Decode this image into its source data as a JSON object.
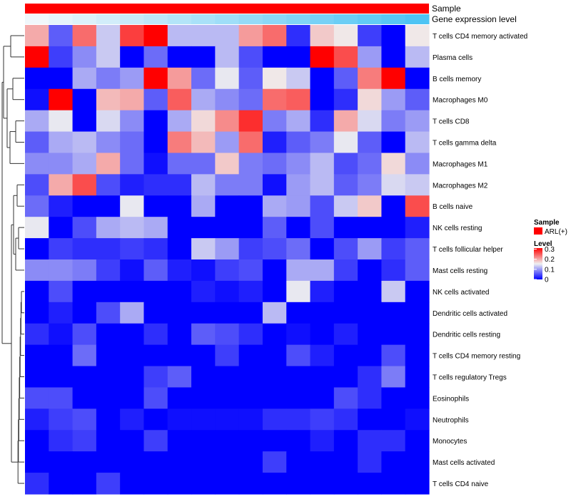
{
  "chart_data": {
    "type": "heatmap",
    "annotation_rows": [
      {
        "name": "Sample",
        "legend_title": "Sample",
        "legend_label": "ARL(+)",
        "color": "#ff0000"
      },
      {
        "name": "Gene expression level",
        "color_low": "#f0f7fb",
        "color_high": "#4ec4f4"
      }
    ],
    "rows": [
      "T cells CD4 memory activated",
      "Plasma cells",
      "B cells memory",
      "Macrophages M0",
      "T cells CD8",
      "T cells gamma delta",
      "Macrophages M1",
      "Macrophages M2",
      "B cells naive",
      "NK cells resting",
      "T cells follicular helper",
      "Mast cells resting",
      "NK cells activated",
      "Dendritic cells activated",
      "Dendritic cells resting",
      "T cells CD4 memory resting",
      "T cells regulatory  Tregs",
      "Eosinophils",
      "Neutrophils",
      "Monocytes",
      "Mast cells activated",
      "T cells CD4 naive"
    ],
    "values": [
      [
        0.2,
        0.06,
        0.24,
        0.13,
        0.27,
        0.31,
        0.12,
        0.12,
        0.12,
        0.21,
        0.24,
        0.03,
        0.18,
        0.16,
        0.04,
        0.0,
        0.16
      ],
      [
        0.31,
        0.04,
        0.09,
        0.13,
        0.0,
        0.07,
        0.0,
        0.0,
        0.12,
        0.05,
        0.0,
        0.0,
        0.31,
        0.26,
        0.1,
        0.0,
        0.12
      ],
      [
        0.0,
        0.0,
        0.11,
        0.08,
        0.1,
        0.31,
        0.21,
        0.07,
        0.15,
        0.06,
        0.16,
        0.13,
        0.0,
        0.06,
        0.23,
        0.31,
        0.0
      ],
      [
        0.01,
        0.31,
        0.0,
        0.19,
        0.2,
        0.06,
        0.25,
        0.11,
        0.09,
        0.07,
        0.24,
        0.25,
        0.0,
        0.03,
        0.17,
        0.1,
        0.06
      ],
      [
        0.11,
        0.15,
        0.0,
        0.14,
        0.09,
        0.0,
        0.11,
        0.17,
        0.22,
        0.28,
        0.08,
        0.11,
        0.03,
        0.2,
        0.14,
        0.08,
        0.1
      ],
      [
        0.06,
        0.11,
        0.12,
        0.09,
        0.07,
        0.0,
        0.23,
        0.19,
        0.1,
        0.24,
        0.02,
        0.06,
        0.08,
        0.15,
        0.06,
        0.0,
        0.12
      ],
      [
        0.09,
        0.09,
        0.11,
        0.2,
        0.07,
        0.01,
        0.07,
        0.07,
        0.18,
        0.08,
        0.07,
        0.09,
        0.12,
        0.05,
        0.07,
        0.17,
        0.09
      ],
      [
        0.05,
        0.2,
        0.26,
        0.05,
        0.02,
        0.03,
        0.03,
        0.12,
        0.08,
        0.08,
        0.01,
        0.1,
        0.12,
        0.06,
        0.08,
        0.14,
        0.13
      ],
      [
        0.07,
        0.02,
        0.0,
        0.0,
        0.15,
        0.0,
        0.0,
        0.11,
        0.0,
        0.0,
        0.11,
        0.1,
        0.05,
        0.13,
        0.18,
        0.0,
        0.26
      ],
      [
        0.15,
        0.0,
        0.05,
        0.11,
        0.12,
        0.11,
        0.0,
        0.0,
        0.0,
        0.0,
        0.06,
        0.0,
        0.05,
        0.0,
        0.0,
        0.0,
        0.02
      ],
      [
        0.0,
        0.04,
        0.03,
        0.03,
        0.04,
        0.03,
        0.0,
        0.13,
        0.1,
        0.04,
        0.05,
        0.07,
        0.0,
        0.05,
        0.1,
        0.04,
        0.06
      ],
      [
        0.09,
        0.09,
        0.08,
        0.04,
        0.01,
        0.06,
        0.02,
        0.01,
        0.04,
        0.05,
        0.0,
        0.11,
        0.11,
        0.04,
        0.0,
        0.03,
        0.06
      ],
      [
        0.0,
        0.05,
        0.0,
        0.0,
        0.0,
        0.0,
        0.0,
        0.02,
        0.01,
        0.02,
        0.0,
        0.15,
        0.02,
        0.0,
        0.0,
        0.13,
        0.0
      ],
      [
        0.0,
        0.02,
        0.0,
        0.05,
        0.11,
        0.0,
        0.0,
        0.0,
        0.0,
        0.0,
        0.12,
        0.0,
        0.0,
        0.0,
        0.0,
        0.0,
        0.0
      ],
      [
        0.03,
        0.01,
        0.05,
        0.0,
        0.0,
        0.03,
        0.0,
        0.06,
        0.05,
        0.03,
        0.0,
        0.01,
        0.0,
        0.02,
        0.0,
        0.0,
        0.0
      ],
      [
        0.0,
        0.0,
        0.07,
        0.0,
        0.0,
        0.0,
        0.0,
        0.0,
        0.04,
        0.0,
        0.0,
        0.05,
        0.02,
        0.0,
        0.0,
        0.05,
        0.0
      ],
      [
        0.0,
        0.0,
        0.0,
        0.0,
        0.0,
        0.04,
        0.06,
        0.0,
        0.0,
        0.0,
        0.0,
        0.0,
        0.0,
        0.0,
        0.03,
        0.08,
        0.0
      ],
      [
        0.05,
        0.05,
        0.0,
        0.0,
        0.0,
        0.05,
        0.0,
        0.0,
        0.0,
        0.0,
        0.0,
        0.0,
        0.0,
        0.05,
        0.03,
        0.0,
        0.0
      ],
      [
        0.02,
        0.04,
        0.05,
        0.0,
        0.02,
        0.0,
        0.01,
        0.01,
        0.01,
        0.01,
        0.03,
        0.03,
        0.04,
        0.03,
        0.0,
        0.0,
        0.01
      ],
      [
        0.0,
        0.03,
        0.04,
        0.0,
        0.0,
        0.04,
        0.0,
        0.0,
        0.0,
        0.0,
        0.0,
        0.0,
        0.02,
        0.0,
        0.03,
        0.03,
        0.0
      ],
      [
        0.0,
        0.0,
        0.0,
        0.0,
        0.0,
        0.0,
        0.0,
        0.0,
        0.0,
        0.0,
        0.04,
        0.0,
        0.0,
        0.0,
        0.03,
        0.0,
        0.0
      ],
      [
        0.03,
        0.0,
        0.0,
        0.04,
        0.0,
        0.0,
        0.0,
        0.0,
        0.0,
        0.0,
        0.0,
        0.0,
        0.0,
        0.0,
        0.0,
        0.0,
        0.0
      ]
    ],
    "legend": {
      "title": "Level",
      "ticks": [
        "0.3",
        "0.2",
        "0.1",
        "0"
      ],
      "range": [
        0,
        0.31
      ],
      "colors": [
        "#0000ff",
        "#f0f0f0",
        "#ff0000"
      ]
    },
    "dendrogram": "row clustering tree (left)"
  }
}
